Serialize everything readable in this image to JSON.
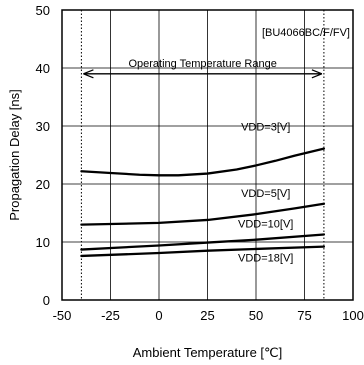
{
  "chart_data": {
    "type": "line",
    "title": "",
    "device_label": "[BU4066BC/F/FV]",
    "xlabel": "Ambient Temperature [℃]",
    "ylabel": "Propagation Delay [ns]",
    "xlim": [
      -50,
      100
    ],
    "ylim": [
      0,
      50
    ],
    "xticks": [
      -50,
      -25,
      0,
      25,
      50,
      75,
      100
    ],
    "yticks": [
      0,
      10,
      20,
      30,
      40,
      50
    ],
    "grid": true,
    "operating_range": {
      "label": "Operating Temperature Range",
      "x": [
        -40,
        85
      ],
      "y": 39
    },
    "series": [
      {
        "name": "VDD=3[V]",
        "x": [
          -40,
          -25,
          -10,
          0,
          10,
          25,
          40,
          50,
          60,
          70,
          85
        ],
        "values": [
          22.2,
          21.9,
          21.6,
          21.5,
          21.5,
          21.8,
          22.5,
          23.2,
          24.0,
          24.9,
          26.1
        ]
      },
      {
        "name": "VDD=5[V]",
        "x": [
          -40,
          -25,
          0,
          25,
          50,
          70,
          85
        ],
        "values": [
          13.0,
          13.1,
          13.3,
          13.8,
          14.8,
          15.8,
          16.6
        ]
      },
      {
        "name": "VDD=10[V]",
        "x": [
          -40,
          0,
          25,
          50,
          85
        ],
        "values": [
          8.7,
          9.4,
          9.9,
          10.4,
          11.3
        ]
      },
      {
        "name": "VDD=18[V]",
        "x": [
          -40,
          0,
          25,
          50,
          85
        ],
        "values": [
          7.6,
          8.1,
          8.5,
          8.8,
          9.2
        ]
      }
    ]
  }
}
